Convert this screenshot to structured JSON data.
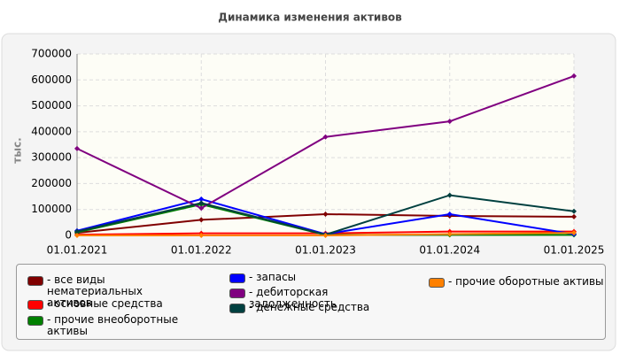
{
  "chart_data": {
    "type": "line",
    "title": "Динамика изменения активов",
    "ylabel": "тыс.",
    "categories": [
      "01.01.2021",
      "01.01.2022",
      "01.01.2023",
      "01.01.2024",
      "01.01.2025"
    ],
    "series": [
      {
        "name": "- все виды нематериальных активов",
        "color": "#800000",
        "values": [
          10000,
          60000,
          82000,
          75000,
          72000
        ]
      },
      {
        "name": "- основные средства",
        "color": "#ff0000",
        "values": [
          3000,
          8000,
          8000,
          15000,
          15000
        ]
      },
      {
        "name": "- прочие внеоборотные активы",
        "color": "#008000",
        "values": [
          12000,
          120000,
          2000,
          2000,
          2000
        ]
      },
      {
        "name": "- запасы",
        "color": "#0000ff",
        "values": [
          18000,
          140000,
          5000,
          82000,
          5000
        ]
      },
      {
        "name": "- дебиторская задолженность",
        "color": "#800080",
        "values": [
          335000,
          105000,
          380000,
          440000,
          615000
        ]
      },
      {
        "name": "- денежные средства",
        "color": "#004040",
        "values": [
          15000,
          125000,
          3000,
          155000,
          93000
        ]
      },
      {
        "name": "- прочие оборотные активы",
        "color": "#ff8000",
        "values": [
          0,
          0,
          0,
          5000,
          10000
        ]
      }
    ],
    "ylim": [
      0,
      700000
    ],
    "yticks": [
      0,
      100000,
      200000,
      300000,
      400000,
      500000,
      600000,
      700000
    ],
    "grid": true
  }
}
